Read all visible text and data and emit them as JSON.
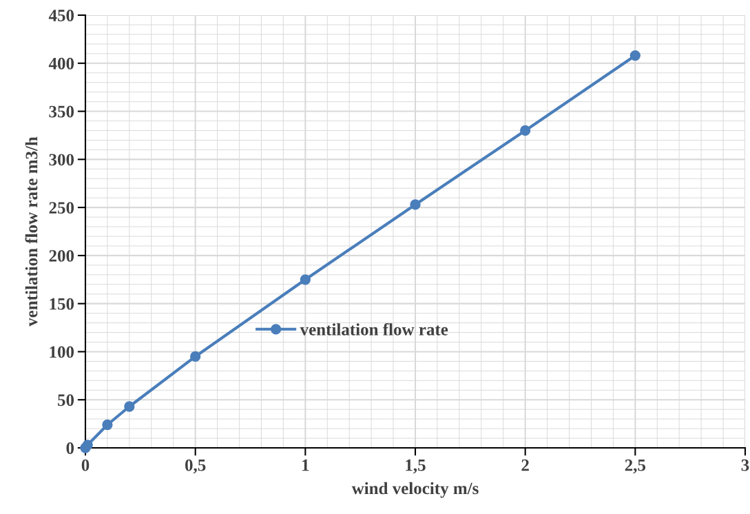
{
  "chart_data": {
    "type": "line",
    "xlabel": "wind velocity m/s",
    "ylabel": "ventilation flow rate m3/h",
    "series": [
      {
        "name": "ventilation flow rate",
        "color": "#4a7ebb",
        "x": [
          0,
          0.01,
          0.1,
          0.2,
          0.5,
          1,
          1.5,
          2,
          2.5
        ],
        "values": [
          0,
          3,
          24,
          43,
          95,
          175,
          253,
          330,
          408
        ]
      }
    ],
    "xlim": [
      0,
      3
    ],
    "xticks": [
      0,
      {
        "value": 0.5,
        "label": "0,5"
      },
      1,
      {
        "value": 1.5,
        "label": "1,5"
      },
      2,
      {
        "value": 2.5,
        "label": "2,5"
      },
      3
    ],
    "ylim": [
      0,
      450
    ],
    "yticks": [
      0,
      50,
      100,
      150,
      200,
      250,
      300,
      350,
      400,
      450
    ],
    "grid": true,
    "legend": "center",
    "marker": "circle",
    "line_style": "solid"
  }
}
